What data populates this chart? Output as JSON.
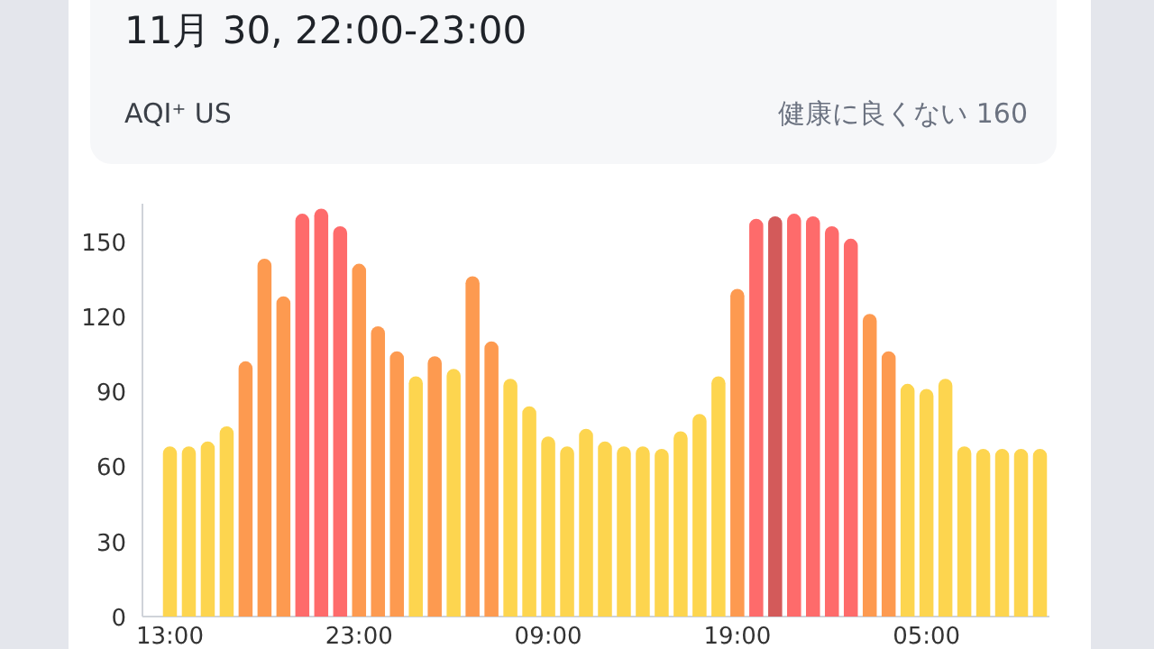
{
  "chart_data": {
    "type": "bar",
    "title": "11月 30, 22:00-23:00",
    "annotations": [
      "AQI⁺ US",
      "健康に良くない 160"
    ],
    "categories": [
      "13:00",
      null,
      null,
      null,
      null,
      null,
      null,
      null,
      null,
      null,
      "23:00",
      null,
      null,
      null,
      null,
      null,
      null,
      null,
      null,
      null,
      "09:00",
      null,
      null,
      null,
      null,
      null,
      null,
      null,
      null,
      null,
      "19:00",
      null,
      null,
      null,
      null,
      null,
      null,
      null,
      null,
      null,
      "05:00",
      null,
      null,
      null,
      null,
      null,
      null
    ],
    "values": [
      68,
      68,
      70,
      76,
      102,
      143,
      128,
      161,
      163,
      156,
      141,
      116,
      106,
      96,
      104,
      99,
      136,
      110,
      95,
      84,
      72,
      68,
      75,
      70,
      68,
      68,
      67,
      74,
      81,
      96,
      131,
      159,
      160,
      161,
      160,
      156,
      151,
      121,
      106,
      93,
      91,
      95,
      68,
      67,
      67,
      67,
      67
    ],
    "colors": [
      "#fdd54f",
      "#fdd54f",
      "#fdd54f",
      "#fdd54f",
      "#fd9a50",
      "#fd9a50",
      "#fd9a50",
      "#fe6b6b",
      "#fe6b6b",
      "#fe6b6b",
      "#fd9a50",
      "#fd9a50",
      "#fd9a50",
      "#fdd54f",
      "#fd9a50",
      "#fdd54f",
      "#fd9a50",
      "#fd9a50",
      "#fdd54f",
      "#fdd54f",
      "#fdd54f",
      "#fdd54f",
      "#fdd54f",
      "#fdd54f",
      "#fdd54f",
      "#fdd54f",
      "#fdd54f",
      "#fdd54f",
      "#fdd54f",
      "#fdd54f",
      "#fd9a50",
      "#fe6b6b",
      "#d35a5a",
      "#fe6b6b",
      "#fe6b6b",
      "#fe6b6b",
      "#fe6b6b",
      "#fd9a50",
      "#fd9a50",
      "#fdd54f",
      "#fdd54f",
      "#fdd54f",
      "#fdd54f",
      "#fdd54f",
      "#fdd54f",
      "#fdd54f",
      "#fdd54f"
    ],
    "ylim": [
      0,
      165
    ],
    "yticks": [
      0,
      30,
      60,
      90,
      120,
      150
    ]
  }
}
